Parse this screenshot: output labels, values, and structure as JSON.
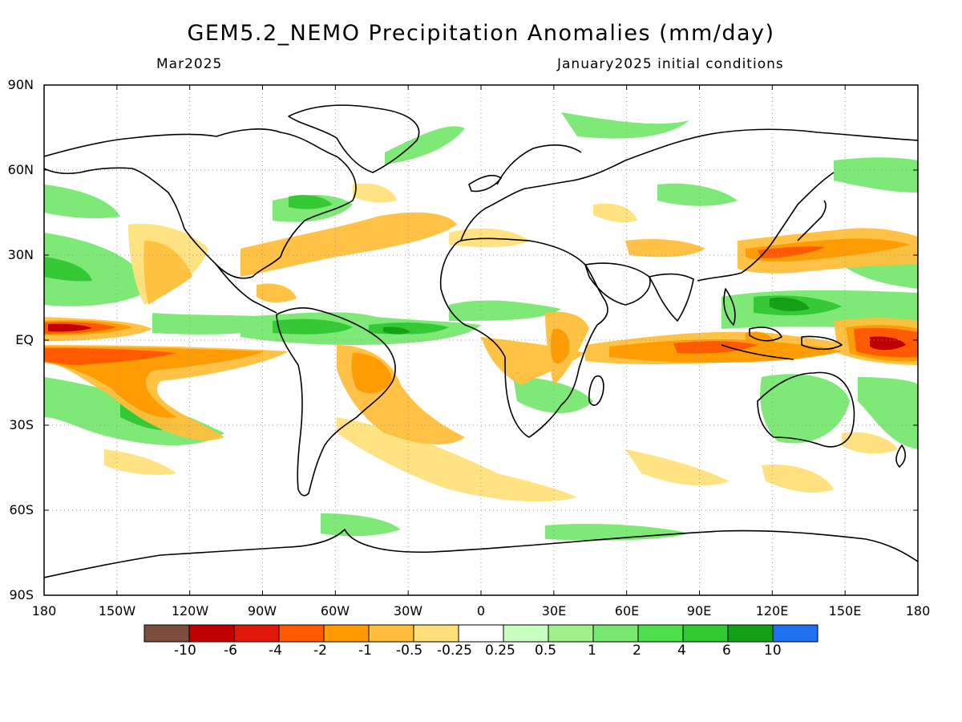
{
  "title": "GEM5.2_NEMO Precipitation Anomalies (mm/day)",
  "valid_month": "Mar2025",
  "initial_conditions": "January2025 initial conditions",
  "lat_labels": [
    "90N",
    "60N",
    "30N",
    "EQ",
    "30S",
    "60S",
    "90S"
  ],
  "lon_labels": [
    "180",
    "150W",
    "120W",
    "90W",
    "60W",
    "30W",
    "0",
    "30E",
    "60E",
    "90E",
    "120E",
    "150E",
    "180"
  ],
  "colorbar": {
    "colors": [
      "#7b4d3f",
      "#c00000",
      "#e0180a",
      "#ff5a00",
      "#ff9a00",
      "#ffbf3c",
      "#ffe07a",
      "#ffffff",
      "#c8ffc0",
      "#a0f08c",
      "#78e870",
      "#4ce04c",
      "#32c832",
      "#14a014",
      "#2070f0"
    ],
    "labels": [
      "-10",
      "-6",
      "-4",
      "-2",
      "-1",
      "-0.5",
      "-0.25",
      "0.25",
      "0.5",
      "1",
      "2",
      "4",
      "6",
      "10"
    ]
  }
}
